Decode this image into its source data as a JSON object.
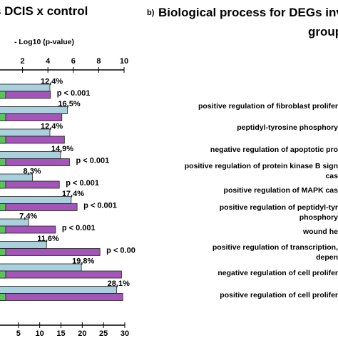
{
  "panel_a": {
    "title": "s DCIS x control"
  },
  "panel_b": {
    "label": "b)",
    "title_line1": "Biological process for DEGs inv",
    "title_line2": "group"
  },
  "colors": {
    "blue": "#a9d0dd",
    "green": "#5cc35c",
    "purple": "#a455b8",
    "edge": "#222222"
  },
  "chart_data": {
    "type": "bar",
    "orientation": "horizontal",
    "top_axis": {
      "label": "- Log10 (p-value)",
      "range": [
        0,
        10
      ],
      "ticks": [
        "2",
        "4",
        "6",
        "8",
        "10"
      ]
    },
    "bottom_axis": {
      "range": [
        0,
        30
      ],
      "ticks": [
        "5",
        "10",
        "15",
        "20",
        "25",
        "30"
      ]
    },
    "series": [
      {
        "color": "blue",
        "axis": "bottom",
        "values": [
          12.4,
          16.5,
          12.4,
          14.9,
          8.3,
          17.4,
          7.4,
          11.6,
          19.8,
          28.1
        ]
      },
      {
        "color": "green",
        "axis": "bottom",
        "values": [
          2,
          2,
          2,
          2,
          2,
          2,
          2,
          2,
          2,
          2
        ]
      },
      {
        "color": "purple",
        "axis": "top",
        "values": [
          4.2,
          5.1,
          5.3,
          5.7,
          4.9,
          6.3,
          4.6,
          8.1,
          9.8,
          9.9
        ]
      }
    ],
    "bar_labels": [
      "12,4%",
      "16,5%",
      "12,4%",
      "14,9%",
      "8,3%",
      "17,4%",
      "7,4%",
      "11,6%",
      "19,8%",
      "28,1%"
    ],
    "p_labels": [
      "p < 0.001",
      "",
      "",
      "p < 0.001",
      "p < 0.001",
      "p < 0.001",
      "p < 0.001",
      "p < 0.00",
      "",
      ""
    ],
    "categories": [
      "positive regulation of fibroblast prolifer",
      "peptidyl-tyrosine phosphory",
      "negative regulation of apoptotic pro",
      "positive regulation of protein kinase B sign",
      "positive regulation of MAPK cas",
      "positive regulation of peptidyl-tyr",
      "wound he",
      "positive regulation of transcription,",
      "negative regulation of cell prolifer",
      "positive regulation of cell prolifer"
    ],
    "category_second_lines": [
      "",
      "",
      "",
      "cas",
      "",
      "phosphory",
      "",
      "depen",
      "",
      ""
    ]
  }
}
